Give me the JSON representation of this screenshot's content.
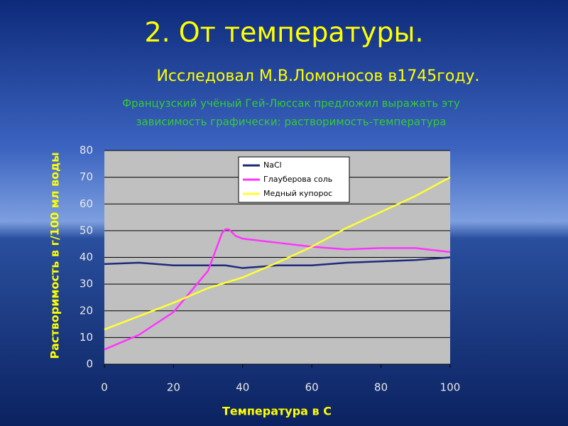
{
  "header": {
    "title": "2. От температуры.",
    "subtitle": "Исследовал М.В.Ломоносов в1745году.",
    "note_line1": "Французский учёный Гей-Люссак предложил выражать эту",
    "note_line2": "зависимость графически: растворимость-температура"
  },
  "chart_data": {
    "type": "line",
    "x_label": "Температура в С",
    "y_label": "Растворимость в г/100 мл воды",
    "xlim": [
      0,
      100
    ],
    "xticks": [
      0,
      20,
      40,
      60,
      80,
      100
    ],
    "ylim": [
      0,
      80
    ],
    "yticks": [
      0,
      10,
      20,
      30,
      40,
      50,
      60,
      70,
      80
    ],
    "grid": true,
    "legend": "top",
    "series": [
      {
        "name": "NaCl",
        "color": "#1f2a7a",
        "x": [
          0,
          10,
          20,
          30,
          35,
          40,
          50,
          60,
          70,
          80,
          90,
          100
        ],
        "values": [
          37.5,
          38,
          37,
          37,
          37,
          36,
          37,
          37,
          38,
          38.5,
          39,
          40
        ]
      },
      {
        "name": "Глауберова соль",
        "color": "#ff33ff",
        "x": [
          0,
          10,
          20,
          30,
          32,
          34,
          35,
          36,
          38,
          40,
          50,
          60,
          70,
          80,
          90,
          100
        ],
        "values": [
          5.5,
          11,
          19.5,
          35,
          42,
          49,
          50.5,
          50.5,
          48,
          47,
          45.5,
          44,
          43,
          43.5,
          43.5,
          42
        ]
      },
      {
        "name": "Медный купорос",
        "color": "#ffff33",
        "x": [
          0,
          10,
          20,
          30,
          40,
          50,
          60,
          70,
          80,
          90,
          100
        ],
        "values": [
          13,
          18,
          23,
          28.5,
          32.5,
          38,
          44,
          51,
          57,
          63,
          70
        ]
      }
    ]
  }
}
